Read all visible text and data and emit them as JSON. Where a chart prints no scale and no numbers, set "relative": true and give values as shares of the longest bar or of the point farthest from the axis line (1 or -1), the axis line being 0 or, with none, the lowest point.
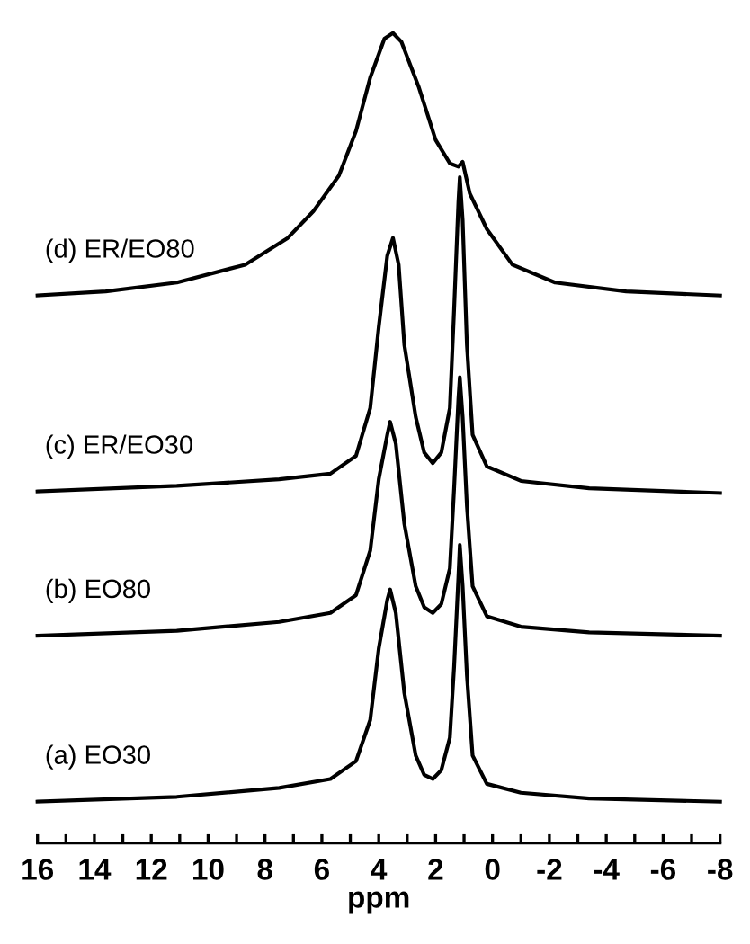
{
  "chart_data": {
    "type": "line",
    "relative": true,
    "xlabel": "ppm",
    "xlim": [
      16,
      -8
    ],
    "xticks": [
      16,
      {
        "value": 15,
        "label": null
      },
      14,
      {
        "value": 13,
        "label": null
      },
      12,
      {
        "value": 11,
        "label": null
      },
      10,
      {
        "value": 9,
        "label": null
      },
      8,
      {
        "value": 7,
        "label": null
      },
      6,
      {
        "value": 5,
        "label": null
      },
      4,
      {
        "value": 3,
        "label": null
      },
      2,
      {
        "value": 1,
        "label": null
      },
      0,
      {
        "value": -1,
        "label": null
      },
      -2,
      {
        "value": -3,
        "label": null
      },
      -4,
      {
        "value": -5,
        "label": null
      },
      -6,
      {
        "value": -7,
        "label": null
      },
      -8
    ],
    "tick_labels": "x",
    "grid": false,
    "legend": false,
    "marker": "none",
    "line_style": "solid",
    "series": [
      {
        "name": "(d) ER/EO80",
        "color": "#000000",
        "x": [
          16,
          13.6,
          11.1,
          8.7,
          7.2,
          6.3,
          5.4,
          4.8,
          4.3,
          3.8,
          3.5,
          3.2,
          2.6,
          2.0,
          1.5,
          1.2,
          1.05,
          0.8,
          0.2,
          -0.7,
          -2.2,
          -4.7,
          -8
        ],
        "values": [
          0.676,
          0.681,
          0.692,
          0.714,
          0.747,
          0.78,
          0.824,
          0.879,
          0.945,
          0.993,
          1,
          0.989,
          0.934,
          0.868,
          0.839,
          0.835,
          0.841,
          0.802,
          0.758,
          0.714,
          0.692,
          0.681,
          0.676
        ]
      },
      {
        "name": "(c) ER/EO30",
        "color": "#000000",
        "x": [
          16,
          11.1,
          7.5,
          5.7,
          4.8,
          4.3,
          4.0,
          3.7,
          3.5,
          3.3,
          3.1,
          2.7,
          2.4,
          2.1,
          1.8,
          1.5,
          1.35,
          1.2,
          1.15,
          1.05,
          0.9,
          0.7,
          0.2,
          -1.0,
          -3.4,
          -8
        ],
        "values": [
          0.434,
          0.441,
          0.449,
          0.456,
          0.478,
          0.537,
          0.637,
          0.725,
          0.747,
          0.714,
          0.615,
          0.526,
          0.482,
          0.469,
          0.482,
          0.537,
          0.659,
          0.791,
          0.822,
          0.769,
          0.615,
          0.504,
          0.465,
          0.447,
          0.438,
          0.432
        ]
      },
      {
        "name": "(b) EO80",
        "color": "#000000",
        "x": [
          16,
          11.1,
          7.5,
          5.7,
          4.8,
          4.3,
          4.0,
          3.7,
          3.6,
          3.4,
          3.1,
          2.7,
          2.4,
          2.1,
          1.8,
          1.5,
          1.35,
          1.2,
          1.15,
          1.05,
          0.9,
          0.7,
          0.2,
          -1.0,
          -3.4,
          -8
        ],
        "values": [
          0.256,
          0.262,
          0.273,
          0.284,
          0.306,
          0.361,
          0.449,
          0.504,
          0.52,
          0.493,
          0.394,
          0.317,
          0.291,
          0.284,
          0.295,
          0.339,
          0.438,
          0.548,
          0.575,
          0.526,
          0.416,
          0.317,
          0.28,
          0.267,
          0.26,
          0.256
        ]
      },
      {
        "name": "(a) EO30",
        "color": "#000000",
        "x": [
          16,
          11.1,
          7.5,
          5.7,
          4.8,
          4.3,
          4.0,
          3.7,
          3.6,
          3.4,
          3.1,
          2.7,
          2.4,
          2.1,
          1.8,
          1.5,
          1.35,
          1.2,
          1.15,
          1.05,
          0.9,
          0.7,
          0.2,
          -1.0,
          -3.4,
          -8
        ],
        "values": [
          0.051,
          0.057,
          0.068,
          0.079,
          0.101,
          0.152,
          0.24,
          0.3,
          0.313,
          0.284,
          0.185,
          0.108,
          0.084,
          0.079,
          0.09,
          0.13,
          0.218,
          0.328,
          0.368,
          0.317,
          0.207,
          0.108,
          0.073,
          0.062,
          0.055,
          0.051
        ]
      }
    ]
  }
}
